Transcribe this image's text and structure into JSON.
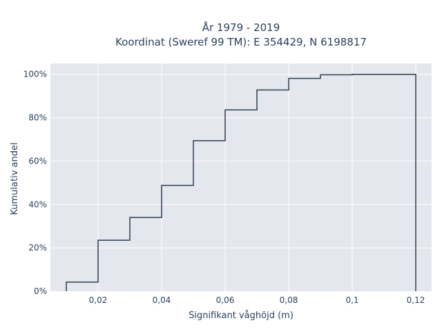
{
  "chart_data": {
    "type": "line",
    "subtype": "cumulative-step",
    "title_lines": [
      "År 1979 - 2019",
      "Koordinat (Sweref 99 TM): E 354429, N 6198817"
    ],
    "xlabel": "Signifikant våghöjd (m)",
    "ylabel": "Kumulativ andel",
    "xlim": [
      0.005,
      0.125
    ],
    "ylim": [
      0,
      105
    ],
    "x_ticks": [
      0.02,
      0.04,
      0.06,
      0.08,
      0.1,
      0.12
    ],
    "x_tick_labels": [
      "0,02",
      "0,04",
      "0,06",
      "0,08",
      "0,1",
      "0,12"
    ],
    "y_ticks": [
      0,
      20,
      40,
      60,
      80,
      100
    ],
    "y_tick_labels": [
      "0%",
      "20%",
      "40%",
      "60%",
      "80%",
      "100%"
    ],
    "grid": true,
    "series": [
      {
        "x": [
          0.01,
          0.02,
          0.03,
          0.04,
          0.05,
          0.06,
          0.07,
          0.08,
          0.09,
          0.1,
          0.12
        ],
        "y": [
          4.2,
          23.5,
          34,
          48.8,
          69.4,
          83.6,
          92.8,
          98.1,
          99.8,
          100,
          100
        ],
        "color": "#2d3e50"
      }
    ],
    "background": "#e5e7ef"
  }
}
